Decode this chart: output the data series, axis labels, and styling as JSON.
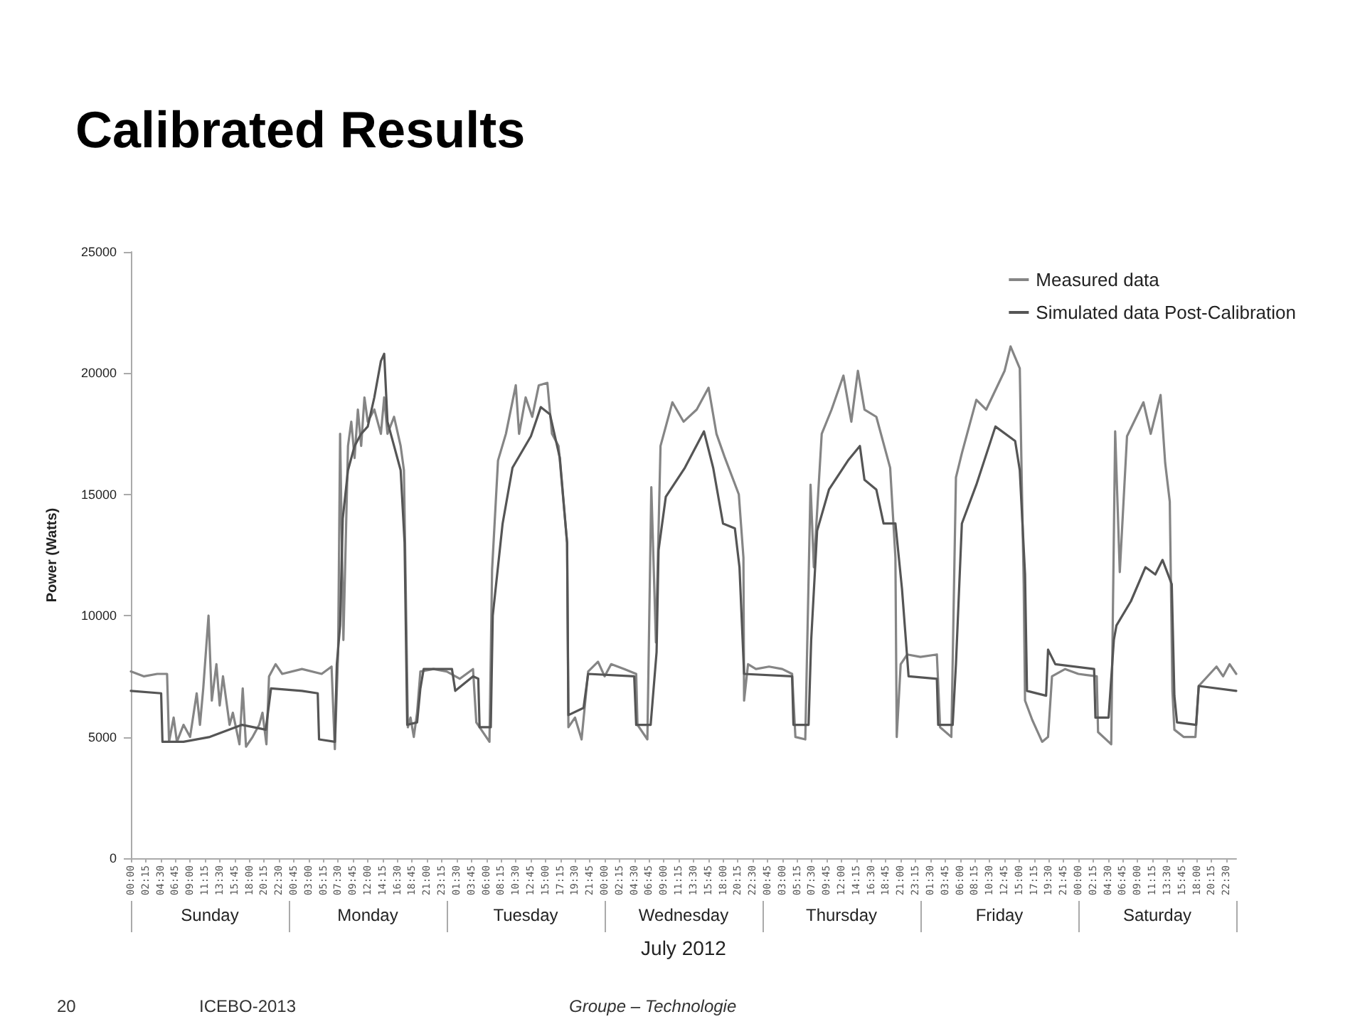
{
  "chart_data": {
    "type": "line",
    "title": "Calibrated Results",
    "xlabel": "July 2012",
    "ylabel": "Power (Watts)",
    "annotations": [
      "20",
      "ICEBO-2013",
      "Groupe – Technologie",
      "Sunday",
      "Monday",
      "Tuesday",
      "Wednesday",
      "Thursday",
      "Friday",
      "Saturday"
    ],
    "xlim": [
      "2012-07-01T00:00",
      "2012-07-08T00:00"
    ],
    "ylim": [
      0,
      25000
    ],
    "yticks": [
      0,
      5000,
      10000,
      15000,
      20000,
      25000
    ],
    "xticks": [
      {
        "value": "2012-07-01T00:00",
        "label": "00:00"
      },
      {
        "value": "2012-07-01T02:15",
        "label": "02:15"
      },
      {
        "value": "2012-07-01T04:30",
        "label": "04:30"
      },
      {
        "value": "2012-07-01T06:45",
        "label": "06:45"
      },
      {
        "value": "2012-07-01T09:00",
        "label": "09:00"
      },
      {
        "value": "2012-07-01T11:15",
        "label": "11:15"
      },
      {
        "value": "2012-07-01T13:30",
        "label": "13:30"
      },
      {
        "value": "2012-07-01T15:45",
        "label": "15:45"
      },
      {
        "value": "2012-07-01T18:00",
        "label": "18:00"
      },
      {
        "value": "2012-07-01T20:15",
        "label": "20:15"
      },
      {
        "value": "2012-07-01T22:30",
        "label": "22:30"
      },
      {
        "value": "2012-07-02T00:45",
        "label": "00:45"
      },
      {
        "value": "2012-07-02T03:00",
        "label": "03:00"
      },
      {
        "value": "2012-07-02T05:15",
        "label": "05:15"
      },
      {
        "value": "2012-07-02T07:30",
        "label": "07:30"
      },
      {
        "value": "2012-07-02T09:45",
        "label": "09:45"
      },
      {
        "value": "2012-07-02T12:00",
        "label": "12:00"
      },
      {
        "value": "2012-07-02T14:15",
        "label": "14:15"
      },
      {
        "value": "2012-07-02T16:30",
        "label": "16:30"
      },
      {
        "value": "2012-07-02T18:45",
        "label": "18:45"
      },
      {
        "value": "2012-07-02T21:00",
        "label": "21:00"
      },
      {
        "value": "2012-07-02T23:15",
        "label": "23:15"
      },
      {
        "value": "2012-07-03T01:30",
        "label": "01:30"
      },
      {
        "value": "2012-07-03T03:45",
        "label": "03:45"
      },
      {
        "value": "2012-07-03T06:00",
        "label": "06:00"
      },
      {
        "value": "2012-07-03T08:15",
        "label": "08:15"
      },
      {
        "value": "2012-07-03T10:30",
        "label": "10:30"
      },
      {
        "value": "2012-07-03T12:45",
        "label": "12:45"
      },
      {
        "value": "2012-07-03T15:00",
        "label": "15:00"
      },
      {
        "value": "2012-07-03T17:15",
        "label": "17:15"
      },
      {
        "value": "2012-07-03T19:30",
        "label": "19:30"
      },
      {
        "value": "2012-07-03T21:45",
        "label": "21:45"
      },
      {
        "value": "2012-07-04T00:00",
        "label": "00:00"
      },
      {
        "value": "2012-07-04T02:15",
        "label": "02:15"
      },
      {
        "value": "2012-07-04T04:30",
        "label": "04:30"
      },
      {
        "value": "2012-07-04T06:45",
        "label": "06:45"
      },
      {
        "value": "2012-07-04T09:00",
        "label": "09:00"
      },
      {
        "value": "2012-07-04T11:15",
        "label": "11:15"
      },
      {
        "value": "2012-07-04T13:30",
        "label": "13:30"
      },
      {
        "value": "2012-07-04T15:45",
        "label": "15:45"
      },
      {
        "value": "2012-07-04T18:00",
        "label": "18:00"
      },
      {
        "value": "2012-07-04T20:15",
        "label": "20:15"
      },
      {
        "value": "2012-07-04T22:30",
        "label": "22:30"
      },
      {
        "value": "2012-07-05T00:45",
        "label": "00:45"
      },
      {
        "value": "2012-07-05T03:00",
        "label": "03:00"
      },
      {
        "value": "2012-07-05T05:15",
        "label": "05:15"
      },
      {
        "value": "2012-07-05T07:30",
        "label": "07:30"
      },
      {
        "value": "2012-07-05T09:45",
        "label": "09:45"
      },
      {
        "value": "2012-07-05T12:00",
        "label": "12:00"
      },
      {
        "value": "2012-07-05T14:15",
        "label": "14:15"
      },
      {
        "value": "2012-07-05T16:30",
        "label": "16:30"
      },
      {
        "value": "2012-07-05T18:45",
        "label": "18:45"
      },
      {
        "value": "2012-07-05T21:00",
        "label": "21:00"
      },
      {
        "value": "2012-07-05T23:15",
        "label": "23:15"
      },
      {
        "value": "2012-07-06T01:30",
        "label": "01:30"
      },
      {
        "value": "2012-07-06T03:45",
        "label": "03:45"
      },
      {
        "value": "2012-07-06T06:00",
        "label": "06:00"
      },
      {
        "value": "2012-07-06T08:15",
        "label": "08:15"
      },
      {
        "value": "2012-07-06T10:30",
        "label": "10:30"
      },
      {
        "value": "2012-07-06T12:45",
        "label": "12:45"
      },
      {
        "value": "2012-07-06T15:00",
        "label": "15:00"
      },
      {
        "value": "2012-07-06T17:15",
        "label": "17:15"
      },
      {
        "value": "2012-07-06T19:30",
        "label": "19:30"
      },
      {
        "value": "2012-07-06T21:45",
        "label": "21:45"
      },
      {
        "value": "2012-07-07T00:00",
        "label": "00:00"
      },
      {
        "value": "2012-07-07T02:15",
        "label": "02:15"
      },
      {
        "value": "2012-07-07T04:30",
        "label": "04:30"
      },
      {
        "value": "2012-07-07T06:45",
        "label": "06:45"
      },
      {
        "value": "2012-07-07T09:00",
        "label": "09:00"
      },
      {
        "value": "2012-07-07T11:15",
        "label": "11:15"
      },
      {
        "value": "2012-07-07T13:30",
        "label": "13:30"
      },
      {
        "value": "2012-07-07T15:45",
        "label": "15:45"
      },
      {
        "value": "2012-07-07T18:00",
        "label": "18:00"
      },
      {
        "value": "2012-07-07T20:15",
        "label": "20:15"
      },
      {
        "value": "2012-07-07T22:30",
        "label": "22:30"
      }
    ],
    "legend": "top right",
    "grid": false,
    "marker": "none",
    "line_style": "solid",
    "series": [
      {
        "name": "Measured data",
        "color": "#858585",
        "x": [
          "2012-07-01T00:00",
          "2012-07-01T02:00",
          "2012-07-01T04:00",
          "2012-07-01T05:30",
          "2012-07-01T05:48",
          "2012-07-01T06:30",
          "2012-07-01T07:00",
          "2012-07-01T08:00",
          "2012-07-01T09:00",
          "2012-07-01T10:00",
          "2012-07-01T10:30",
          "2012-07-01T11:00",
          "2012-07-01T11:48",
          "2012-07-01T12:18",
          "2012-07-01T13:00",
          "2012-07-01T13:30",
          "2012-07-01T14:00",
          "2012-07-01T15:00",
          "2012-07-01T15:30",
          "2012-07-01T16:30",
          "2012-07-01T17:00",
          "2012-07-01T17:30",
          "2012-07-01T18:30",
          "2012-07-01T19:30",
          "2012-07-01T20:00",
          "2012-07-01T20:36",
          "2012-07-01T21:00",
          "2012-07-01T22:00",
          "2012-07-01T23:00",
          "2012-07-02T02:00",
          "2012-07-02T05:00",
          "2012-07-02T06:30",
          "2012-07-02T07:00",
          "2012-07-02T07:30",
          "2012-07-02T07:48",
          "2012-07-02T08:18",
          "2012-07-02T09:00",
          "2012-07-02T09:30",
          "2012-07-02T10:00",
          "2012-07-02T10:30",
          "2012-07-02T11:00",
          "2012-07-02T11:30",
          "2012-07-02T12:00",
          "2012-07-02T13:00",
          "2012-07-02T14:00",
          "2012-07-02T14:30",
          "2012-07-02T15:00",
          "2012-07-02T16:00",
          "2012-07-02T17:00",
          "2012-07-02T17:30",
          "2012-07-02T18:06",
          "2012-07-02T18:30",
          "2012-07-02T19:00",
          "2012-07-02T19:30",
          "2012-07-02T20:00",
          "2012-07-02T22:00",
          "2012-07-03T00:00",
          "2012-07-03T02:00",
          "2012-07-03T04:00",
          "2012-07-03T04:30",
          "2012-07-03T06:30",
          "2012-07-03T06:54",
          "2012-07-03T07:48",
          "2012-07-03T09:00",
          "2012-07-03T10:30",
          "2012-07-03T11:00",
          "2012-07-03T12:00",
          "2012-07-03T13:00",
          "2012-07-03T14:00",
          "2012-07-03T15:18",
          "2012-07-03T16:00",
          "2012-07-03T17:00",
          "2012-07-03T18:18",
          "2012-07-03T18:30",
          "2012-07-03T19:30",
          "2012-07-03T20:30",
          "2012-07-03T21:30",
          "2012-07-03T23:00",
          "2012-07-04T00:00",
          "2012-07-04T01:00",
          "2012-07-04T03:00",
          "2012-07-04T04:48",
          "2012-07-04T05:00",
          "2012-07-04T06:30",
          "2012-07-04T07:06",
          "2012-07-04T07:48",
          "2012-07-04T08:30",
          "2012-07-04T10:18",
          "2012-07-04T12:00",
          "2012-07-04T14:00",
          "2012-07-04T15:48",
          "2012-07-04T17:00",
          "2012-07-04T18:18",
          "2012-07-04T20:24",
          "2012-07-04T21:06",
          "2012-07-04T21:12",
          "2012-07-04T21:48",
          "2012-07-04T23:00",
          "2012-07-05T01:00",
          "2012-07-05T03:00",
          "2012-07-05T04:30",
          "2012-07-05T05:00",
          "2012-07-05T06:30",
          "2012-07-05T07:18",
          "2012-07-05T07:48",
          "2012-07-05T09:00",
          "2012-07-05T10:30",
          "2012-07-05T12:18",
          "2012-07-05T13:30",
          "2012-07-05T14:30",
          "2012-07-05T15:30",
          "2012-07-05T17:18",
          "2012-07-05T19:24",
          "2012-07-05T20:12",
          "2012-07-05T20:24",
          "2012-07-05T21:00",
          "2012-07-05T22:00",
          "2012-07-06T00:00",
          "2012-07-06T02:30",
          "2012-07-06T03:00",
          "2012-07-06T04:42",
          "2012-07-06T05:24",
          "2012-07-06T06:18",
          "2012-07-06T08:30",
          "2012-07-06T10:00",
          "2012-07-06T12:48",
          "2012-07-06T13:42",
          "2012-07-06T15:06",
          "2012-07-06T15:24",
          "2012-07-06T15:42",
          "2012-07-06T15:54",
          "2012-07-06T17:00",
          "2012-07-06T18:30",
          "2012-07-06T19:24",
          "2012-07-06T20:00",
          "2012-07-06T22:00",
          "2012-07-07T00:00",
          "2012-07-07T02:48",
          "2012-07-07T03:00",
          "2012-07-07T05:00",
          "2012-07-07T05:36",
          "2012-07-07T06:18",
          "2012-07-07T07:24",
          "2012-07-07T09:54",
          "2012-07-07T11:00",
          "2012-07-07T12:30",
          "2012-07-07T13:12",
          "2012-07-07T13:54",
          "2012-07-07T14:18",
          "2012-07-07T14:36",
          "2012-07-07T16:00",
          "2012-07-07T17:48",
          "2012-07-07T18:18",
          "2012-07-07T21:00",
          "2012-07-07T22:00",
          "2012-07-07T23:00",
          "2012-07-08T00:00"
        ],
        "values": [
          7700,
          7500,
          7600,
          7600,
          4800,
          5800,
          4800,
          5500,
          5000,
          6800,
          5500,
          7000,
          10000,
          6500,
          8000,
          6300,
          7500,
          5500,
          6000,
          4700,
          7000,
          4600,
          5000,
          5500,
          6000,
          4700,
          7500,
          8000,
          7600,
          7800,
          7600,
          7900,
          4500,
          8500,
          17500,
          9000,
          17000,
          18000,
          16500,
          18500,
          17000,
          19000,
          18000,
          18500,
          17500,
          19000,
          17500,
          18200,
          17000,
          16000,
          5400,
          5800,
          5000,
          6000,
          7700,
          7800,
          7700,
          7400,
          7800,
          5600,
          4800,
          11900,
          16400,
          17500,
          19500,
          17500,
          19000,
          18200,
          19500,
          19600,
          17500,
          17000,
          13000,
          5400,
          5800,
          4900,
          7700,
          8100,
          7500,
          8000,
          7800,
          7600,
          5500,
          4900,
          15300,
          8900,
          17000,
          18800,
          18000,
          18500,
          19400,
          17500,
          16500,
          15000,
          12400,
          6500,
          8000,
          7800,
          7900,
          7800,
          7600,
          5000,
          4900,
          15400,
          12000,
          17500,
          18500,
          19900,
          18000,
          20100,
          18500,
          18200,
          16100,
          12400,
          5000,
          8000,
          8400,
          8300,
          8400,
          5400,
          5000,
          15700,
          16700,
          18900,
          18500,
          20100,
          21100,
          20200,
          15600,
          11300,
          6500,
          5700,
          4800,
          5000,
          7500,
          7800,
          7600,
          7500,
          5200,
          4700,
          17600,
          11800,
          17400,
          18800,
          17500,
          19100,
          16300,
          14700,
          6900,
          5300,
          5000,
          5000,
          7100,
          7900,
          7500,
          8000,
          7600
        ]
      },
      {
        "name": "Simulated data Post-Calibration",
        "color": "#555555",
        "x": [
          "2012-07-01T00:00",
          "2012-07-01T04:36",
          "2012-07-01T04:48",
          "2012-07-01T08:00",
          "2012-07-01T12:00",
          "2012-07-01T16:54",
          "2012-07-01T20:30",
          "2012-07-01T21:18",
          "2012-07-02T02:00",
          "2012-07-02T04:24",
          "2012-07-02T04:36",
          "2012-07-02T07:00",
          "2012-07-02T07:18",
          "2012-07-02T07:48",
          "2012-07-02T08:12",
          "2012-07-02T09:00",
          "2012-07-02T10:00",
          "2012-07-02T11:00",
          "2012-07-02T12:00",
          "2012-07-02T13:00",
          "2012-07-02T14:00",
          "2012-07-02T14:30",
          "2012-07-02T15:00",
          "2012-07-02T16:00",
          "2012-07-02T17:00",
          "2012-07-02T17:36",
          "2012-07-02T18:00",
          "2012-07-02T19:30",
          "2012-07-02T20:00",
          "2012-07-02T20:30",
          "2012-07-03T00:48",
          "2012-07-03T01:18",
          "2012-07-03T04:00",
          "2012-07-03T04:48",
          "2012-07-03T05:00",
          "2012-07-03T06:42",
          "2012-07-03T07:00",
          "2012-07-03T08:30",
          "2012-07-03T10:00",
          "2012-07-03T12:48",
          "2012-07-03T14:18",
          "2012-07-03T15:42",
          "2012-07-03T17:12",
          "2012-07-03T18:18",
          "2012-07-03T18:30",
          "2012-07-03T20:48",
          "2012-07-03T21:30",
          "2012-07-04T04:30",
          "2012-07-04T04:48",
          "2012-07-04T07:00",
          "2012-07-04T07:54",
          "2012-07-04T08:12",
          "2012-07-04T09:18",
          "2012-07-04T12:12",
          "2012-07-04T15:06",
          "2012-07-04T16:30",
          "2012-07-04T18:00",
          "2012-07-04T19:48",
          "2012-07-04T20:30",
          "2012-07-04T21:12",
          "2012-07-05T04:30",
          "2012-07-05T04:42",
          "2012-07-05T07:00",
          "2012-07-05T07:24",
          "2012-07-05T08:18",
          "2012-07-05T10:06",
          "2012-07-05T13:00",
          "2012-07-05T14:48",
          "2012-07-05T15:30",
          "2012-07-05T17:18",
          "2012-07-05T18:24",
          "2012-07-05T20:12",
          "2012-07-05T21:12",
          "2012-07-05T21:54",
          "2012-07-05T22:12",
          "2012-07-06T02:30",
          "2012-07-06T02:42",
          "2012-07-06T04:54",
          "2012-07-06T05:24",
          "2012-07-06T06:18",
          "2012-07-06T08:30",
          "2012-07-06T11:24",
          "2012-07-06T14:24",
          "2012-07-06T15:06",
          "2012-07-06T15:54",
          "2012-07-06T16:12",
          "2012-07-06T19:06",
          "2012-07-06T19:24",
          "2012-07-06T20:30",
          "2012-07-07T02:24",
          "2012-07-07T02:36",
          "2012-07-07T04:36",
          "2012-07-07T05:24",
          "2012-07-07T05:48",
          "2012-07-07T08:00",
          "2012-07-07T10:12",
          "2012-07-07T11:42",
          "2012-07-07T12:48",
          "2012-07-07T14:12",
          "2012-07-07T14:36",
          "2012-07-07T15:00",
          "2012-07-07T17:54",
          "2012-07-07T18:18",
          "2012-07-08T00:00"
        ],
        "values": [
          6900,
          6800,
          4800,
          4800,
          5000,
          5500,
          5300,
          7000,
          6900,
          6800,
          4900,
          4800,
          8000,
          9600,
          14000,
          16000,
          17000,
          17500,
          17800,
          19000,
          20500,
          20800,
          18000,
          17000,
          16000,
          13000,
          5500,
          5600,
          7000,
          7800,
          7800,
          6900,
          7500,
          7400,
          5400,
          5400,
          10000,
          13800,
          16100,
          17400,
          18600,
          18300,
          16500,
          13000,
          5900,
          6200,
          7600,
          7500,
          5500,
          5500,
          8500,
          12700,
          14900,
          16100,
          17600,
          16100,
          13800,
          13600,
          12000,
          7600,
          7500,
          5500,
          5500,
          9000,
          13500,
          15200,
          16400,
          17000,
          15600,
          15200,
          13800,
          13800,
          11100,
          8600,
          7500,
          7400,
          5500,
          5500,
          8000,
          13800,
          15400,
          17800,
          17200,
          16000,
          11700,
          6900,
          6700,
          8600,
          8000,
          7800,
          5800,
          5800,
          9000,
          9600,
          10600,
          12000,
          11700,
          12300,
          11300,
          6700,
          5600,
          5500,
          7100,
          6900
        ]
      }
    ]
  }
}
